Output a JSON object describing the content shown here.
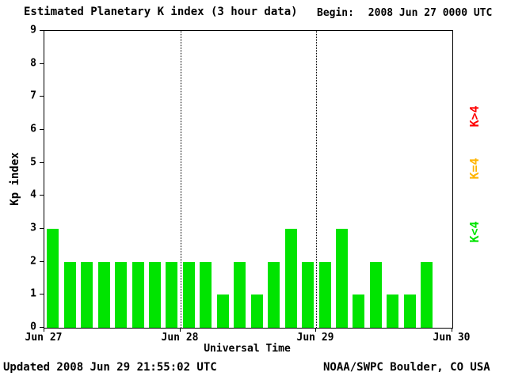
{
  "title": "Estimated Planetary K index (3 hour data)",
  "begin_label": "Begin:",
  "begin_value": "2008 Jun 27 0000 UTC",
  "footer": {
    "updated": "Updated 2008 Jun 29 21:55:02 UTC",
    "source": "NOAA/SWPC Boulder, CO USA"
  },
  "legend": [
    {
      "label": "K>4",
      "color": "#ff0000"
    },
    {
      "label": "K=4",
      "color": "#ffb400"
    },
    {
      "label": "K<4",
      "color": "#00e400"
    }
  ],
  "chart_data": {
    "type": "bar",
    "title": "Estimated Planetary K index (3 hour data)",
    "xlabel": "Universal Time",
    "ylabel": "Kp index",
    "ylim": [
      0,
      9
    ],
    "yticks": [
      0,
      1,
      2,
      3,
      4,
      5,
      6,
      7,
      8,
      9
    ],
    "xticklabels": [
      "Jun 27",
      "Jun 28",
      "Jun 29",
      "Jun 30"
    ],
    "bar_interval_hours": 3,
    "slots_per_day": 8,
    "num_days": 3,
    "values": [
      3,
      2,
      2,
      2,
      2,
      2,
      2,
      2,
      2,
      2,
      1,
      2,
      1,
      2,
      3,
      2,
      2,
      3,
      1,
      2,
      1,
      1,
      2
    ],
    "color_rules": {
      "below_4": "#00e400",
      "equal_4": "#ffb400",
      "above_4": "#ff0000"
    },
    "grid": "dotted vertical lines at day boundaries",
    "legend_position": "right, rotated 90deg"
  }
}
